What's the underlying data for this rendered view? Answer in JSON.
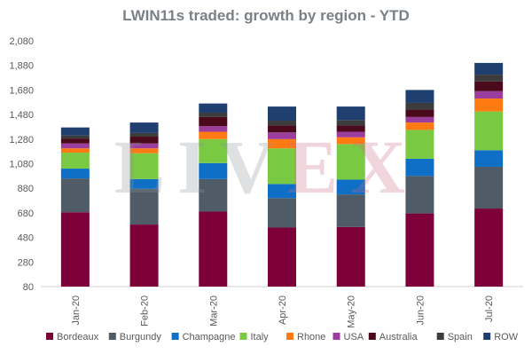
{
  "chart_data": {
    "type": "bar",
    "stacked": true,
    "title": "LWIN11s traded: growth by region - YTD",
    "ylabel": "",
    "xlabel": "",
    "ylim": [
      80,
      2080
    ],
    "yticks": [
      "80",
      "280",
      "480",
      "680",
      "880",
      "1,080",
      "1,280",
      "1,480",
      "1,680",
      "1,880",
      "2,080"
    ],
    "grid": false,
    "legend_position": "bottom",
    "categories": [
      "Jan-20",
      "Feb-20",
      "Mar-20",
      "Apr-20",
      "May-20",
      "Jun-20",
      "Jul-20"
    ],
    "series": [
      {
        "name": "Bordeaux",
        "color": "#7e0038",
        "values": [
          605,
          505,
          610,
          480,
          485,
          595,
          635
        ]
      },
      {
        "name": "Burgundy",
        "color": "#4f5b66",
        "values": [
          275,
          290,
          265,
          240,
          265,
          305,
          340
        ]
      },
      {
        "name": "Champagne",
        "color": "#0f6fc6",
        "values": [
          80,
          80,
          130,
          115,
          120,
          140,
          135
        ]
      },
      {
        "name": "Italy",
        "color": "#7ac943",
        "values": [
          130,
          210,
          195,
          290,
          290,
          235,
          315
        ]
      },
      {
        "name": "Rhone",
        "color": "#ff7a12",
        "values": [
          35,
          40,
          60,
          75,
          55,
          60,
          105
        ]
      },
      {
        "name": "USA",
        "color": "#9b3d9c",
        "values": [
          40,
          40,
          45,
          55,
          45,
          45,
          60
        ]
      },
      {
        "name": "Australia",
        "color": "#4a0a1c",
        "values": [
          40,
          55,
          75,
          55,
          50,
          60,
          80
        ]
      },
      {
        "name": "Spain",
        "color": "#3c3c3c",
        "values": [
          25,
          30,
          35,
          40,
          45,
          55,
          55
        ]
      },
      {
        "name": "ROW",
        "color": "#1f3f70",
        "values": [
          65,
          85,
          75,
          115,
          110,
          105,
          95
        ]
      }
    ]
  },
  "watermark": {
    "left": "LIV",
    "right": "EX"
  }
}
